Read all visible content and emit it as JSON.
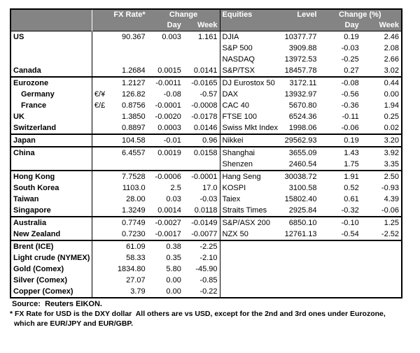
{
  "table": {
    "header": {
      "fx_rate": "FX Rate*",
      "change": "Change",
      "day": "Day",
      "week": "Week",
      "equities": "Equities",
      "level": "Level",
      "change_pct": "Change (%)",
      "day2": "Day",
      "week2": "Week"
    },
    "groups": [
      {
        "rows": [
          {
            "label": "US",
            "pair": "",
            "fx": "90.367",
            "fx_day": "0.003",
            "fx_week": "1.161",
            "equity": "DJIA",
            "level": "10377.77",
            "day": "0.19",
            "week": "2.46",
            "indent": false
          },
          {
            "label": "",
            "pair": "",
            "fx": "",
            "fx_day": "",
            "fx_week": "",
            "equity": "S&P 500",
            "level": "3909.88",
            "day": "-0.03",
            "week": "2.08",
            "indent": false
          },
          {
            "label": "",
            "pair": "",
            "fx": "",
            "fx_day": "",
            "fx_week": "",
            "equity": "NASDAQ",
            "level": "13972.53",
            "day": "-0.25",
            "week": "2.66",
            "indent": false
          },
          {
            "label": "Canada",
            "pair": "",
            "fx": "1.2684",
            "fx_day": "0.0015",
            "fx_week": "0.0141",
            "equity": "S&P/TSX",
            "level": "18457.78",
            "day": "0.27",
            "week": "3.02",
            "indent": false
          }
        ]
      },
      {
        "rows": [
          {
            "label": "Eurozone",
            "pair": "",
            "fx": "1.2127",
            "fx_day": "-0.0011",
            "fx_week": "-0.0165",
            "equity": "DJ Eurostox 50",
            "level": "3172.11",
            "day": "-0.08",
            "week": "0.44",
            "indent": false
          },
          {
            "label": "Germany",
            "pair": "€/¥",
            "fx": "126.82",
            "fx_day": "-0.08",
            "fx_week": "-0.57",
            "equity": "DAX",
            "level": "13932.97",
            "day": "-0.56",
            "week": "0.00",
            "indent": true
          },
          {
            "label": "France",
            "pair": "€/£",
            "fx": "0.8756",
            "fx_day": "-0.0001",
            "fx_week": "-0.0008",
            "equity": "CAC 40",
            "level": "5670.80",
            "day": "-0.36",
            "week": "1.94",
            "indent": true
          },
          {
            "label": "UK",
            "pair": "",
            "fx": "1.3850",
            "fx_day": "-0.0020",
            "fx_week": "-0.0178",
            "equity": "FTSE 100",
            "level": "6524.36",
            "day": "-0.11",
            "week": "0.25",
            "indent": false
          },
          {
            "label": "Switzerland",
            "pair": "",
            "fx": "0.8897",
            "fx_day": "0.0003",
            "fx_week": "0.0146",
            "equity": "Swiss Mkt Index",
            "level": "1998.06",
            "day": "-0.06",
            "week": "0.02",
            "indent": false
          }
        ]
      },
      {
        "rows": [
          {
            "label": "Japan",
            "pair": "",
            "fx": "104.58",
            "fx_day": "-0.01",
            "fx_week": "0.96",
            "equity": "Nikkei",
            "level": "29562.93",
            "day": "0.19",
            "week": "3.20",
            "indent": false
          }
        ]
      },
      {
        "rows": [
          {
            "label": "China",
            "pair": "",
            "fx": "6.4557",
            "fx_day": "0.0019",
            "fx_week": "0.0158",
            "equity": "Shanghai",
            "level": "3655.09",
            "day": "1.43",
            "week": "3.92",
            "indent": false
          },
          {
            "label": "",
            "pair": "",
            "fx": "",
            "fx_day": "",
            "fx_week": "",
            "equity": "Shenzen",
            "level": "2460.54",
            "day": "1.75",
            "week": "3.35",
            "indent": false
          }
        ]
      },
      {
        "rows": [
          {
            "label": "Hong Kong",
            "pair": "",
            "fx": "7.7528",
            "fx_day": "-0.0006",
            "fx_week": "-0.0001",
            "equity": "Hang Seng",
            "level": "30038.72",
            "day": "1.91",
            "week": "2.50",
            "indent": false
          },
          {
            "label": "South Korea",
            "pair": "",
            "fx": "1103.0",
            "fx_day": "2.5",
            "fx_week": "17.0",
            "equity": "KOSPI",
            "level": "3100.58",
            "day": "0.52",
            "week": "-0.93",
            "indent": false
          },
          {
            "label": "Taiwan",
            "pair": "",
            "fx": "28.00",
            "fx_day": "0.03",
            "fx_week": "-0.03",
            "equity": "Taiex",
            "level": "15802.40",
            "day": "0.61",
            "week": "4.39",
            "indent": false
          },
          {
            "label": "Singapore",
            "pair": "",
            "fx": "1.3249",
            "fx_day": "0.0014",
            "fx_week": "0.0118",
            "equity": "Straits Times",
            "level": "2925.84",
            "day": "-0.32",
            "week": "-0.06",
            "indent": false
          }
        ]
      },
      {
        "rows": [
          {
            "label": "Australia",
            "pair": "",
            "fx": "0.7749",
            "fx_day": "-0.0027",
            "fx_week": "-0.0149",
            "equity": "S&P/ASX 200",
            "level": "6850.10",
            "day": "-0.10",
            "week": "1.25",
            "indent": false
          },
          {
            "label": "New Zealand",
            "pair": "",
            "fx": "0.7230",
            "fx_day": "-0.0017",
            "fx_week": "-0.0077",
            "equity": "NZX 50",
            "level": "12761.13",
            "day": "-0.54",
            "week": "-2.52",
            "indent": false
          }
        ]
      },
      {
        "rows": [
          {
            "label": "Brent (ICE)",
            "pair": "",
            "fx": "61.09",
            "fx_day": "0.38",
            "fx_week": "-2.25",
            "equity": "",
            "level": "",
            "day": "",
            "week": "",
            "indent": false
          },
          {
            "label": "Light crude (NYMEX)",
            "pair": "",
            "fx": "58.33",
            "fx_day": "0.35",
            "fx_week": "-2.10",
            "equity": "",
            "level": "",
            "day": "",
            "week": "",
            "indent": false
          },
          {
            "label": "Gold (Comex)",
            "pair": "",
            "fx": "1834.80",
            "fx_day": "5.80",
            "fx_week": "-45.90",
            "equity": "",
            "level": "",
            "day": "",
            "week": "",
            "indent": false
          },
          {
            "label": "Silver (Comex)",
            "pair": "",
            "fx": "27.07",
            "fx_day": "0.00",
            "fx_week": "-0.85",
            "equity": "",
            "level": "",
            "day": "",
            "week": "",
            "indent": false
          },
          {
            "label": "Copper (Comex)",
            "pair": "",
            "fx": "3.79",
            "fx_day": "0.00",
            "fx_week": "-0.22",
            "equity": "",
            "level": "",
            "day": "",
            "week": "",
            "indent": false
          }
        ]
      }
    ]
  },
  "footer": {
    "source": "Source:  Reuters EIKON.",
    "footnote_line1": "* FX Rate for USD is the DXY dollar  All others are vs USD, except for the 2nd and 3rd ones under Eurozone,",
    "footnote_line2": "which are EUR/JPY and EUR/GBP."
  },
  "colors": {
    "header_bg": "#848484",
    "header_text": "#ffffff",
    "border": "#000000",
    "text": "#000000"
  }
}
